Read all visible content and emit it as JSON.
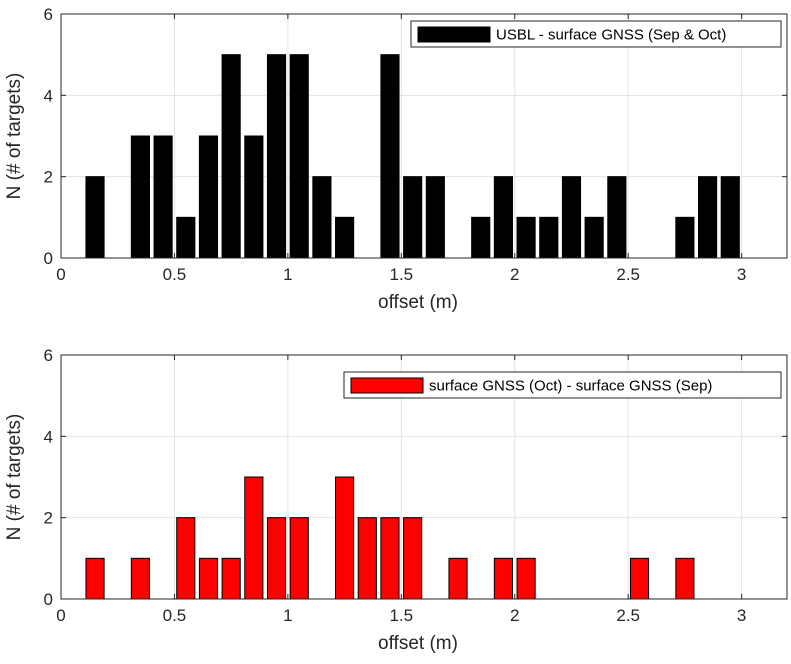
{
  "chart_data": [
    {
      "type": "bar",
      "xlabel": "offset (m)",
      "ylabel": "N (# of targets)",
      "xlim": [
        0,
        3.2
      ],
      "ylim": [
        0,
        6
      ],
      "xticks": [
        "0",
        "0.5",
        "1",
        "1.5",
        "2",
        "2.5",
        "3"
      ],
      "yticks": [
        "0",
        "2",
        "4",
        "6"
      ],
      "grid": true,
      "legend_position": "top-right",
      "bin_width": 0.1,
      "bar_width": 0.08,
      "series": [
        {
          "name": "USBL - surface GNSS (Sep & Oct)",
          "color": "#000000",
          "x": [
            0.15,
            0.25,
            0.35,
            0.45,
            0.55,
            0.65,
            0.75,
            0.85,
            0.95,
            1.05,
            1.15,
            1.25,
            1.35,
            1.45,
            1.55,
            1.65,
            1.75,
            1.85,
            1.95,
            2.05,
            2.15,
            2.25,
            2.35,
            2.45,
            2.55,
            2.65,
            2.75,
            2.85,
            2.95,
            3.05,
            3.15
          ],
          "values": [
            2,
            0,
            3,
            3,
            1,
            3,
            5,
            3,
            5,
            5,
            2,
            1,
            0,
            5,
            2,
            2,
            0,
            1,
            2,
            1,
            1,
            2,
            1,
            2,
            0,
            0,
            1,
            2,
            2,
            0,
            0
          ]
        }
      ]
    },
    {
      "type": "bar",
      "xlabel": "offset (m)",
      "ylabel": "N (# of targets)",
      "xlim": [
        0,
        3.2
      ],
      "ylim": [
        0,
        6
      ],
      "xticks": [
        "0",
        "0.5",
        "1",
        "1.5",
        "2",
        "2.5",
        "3"
      ],
      "yticks": [
        "0",
        "2",
        "4",
        "6"
      ],
      "grid": true,
      "legend_position": "top-right",
      "bin_width": 0.1,
      "bar_width": 0.08,
      "series": [
        {
          "name": "surface GNSS (Oct) - surface GNSS (Sep)",
          "color": "#ff0000",
          "x": [
            0.15,
            0.25,
            0.35,
            0.45,
            0.55,
            0.65,
            0.75,
            0.85,
            0.95,
            1.05,
            1.15,
            1.25,
            1.35,
            1.45,
            1.55,
            1.65,
            1.75,
            1.85,
            1.95,
            2.05,
            2.15,
            2.25,
            2.35,
            2.45,
            2.55,
            2.65,
            2.75,
            2.85,
            2.95,
            3.05,
            3.15
          ],
          "values": [
            1,
            0,
            1,
            0,
            2,
            1,
            1,
            3,
            2,
            2,
            0,
            3,
            2,
            2,
            2,
            0,
            1,
            0,
            1,
            1,
            0,
            0,
            0,
            0,
            1,
            0,
            1,
            0,
            0,
            0,
            0
          ]
        }
      ]
    }
  ]
}
